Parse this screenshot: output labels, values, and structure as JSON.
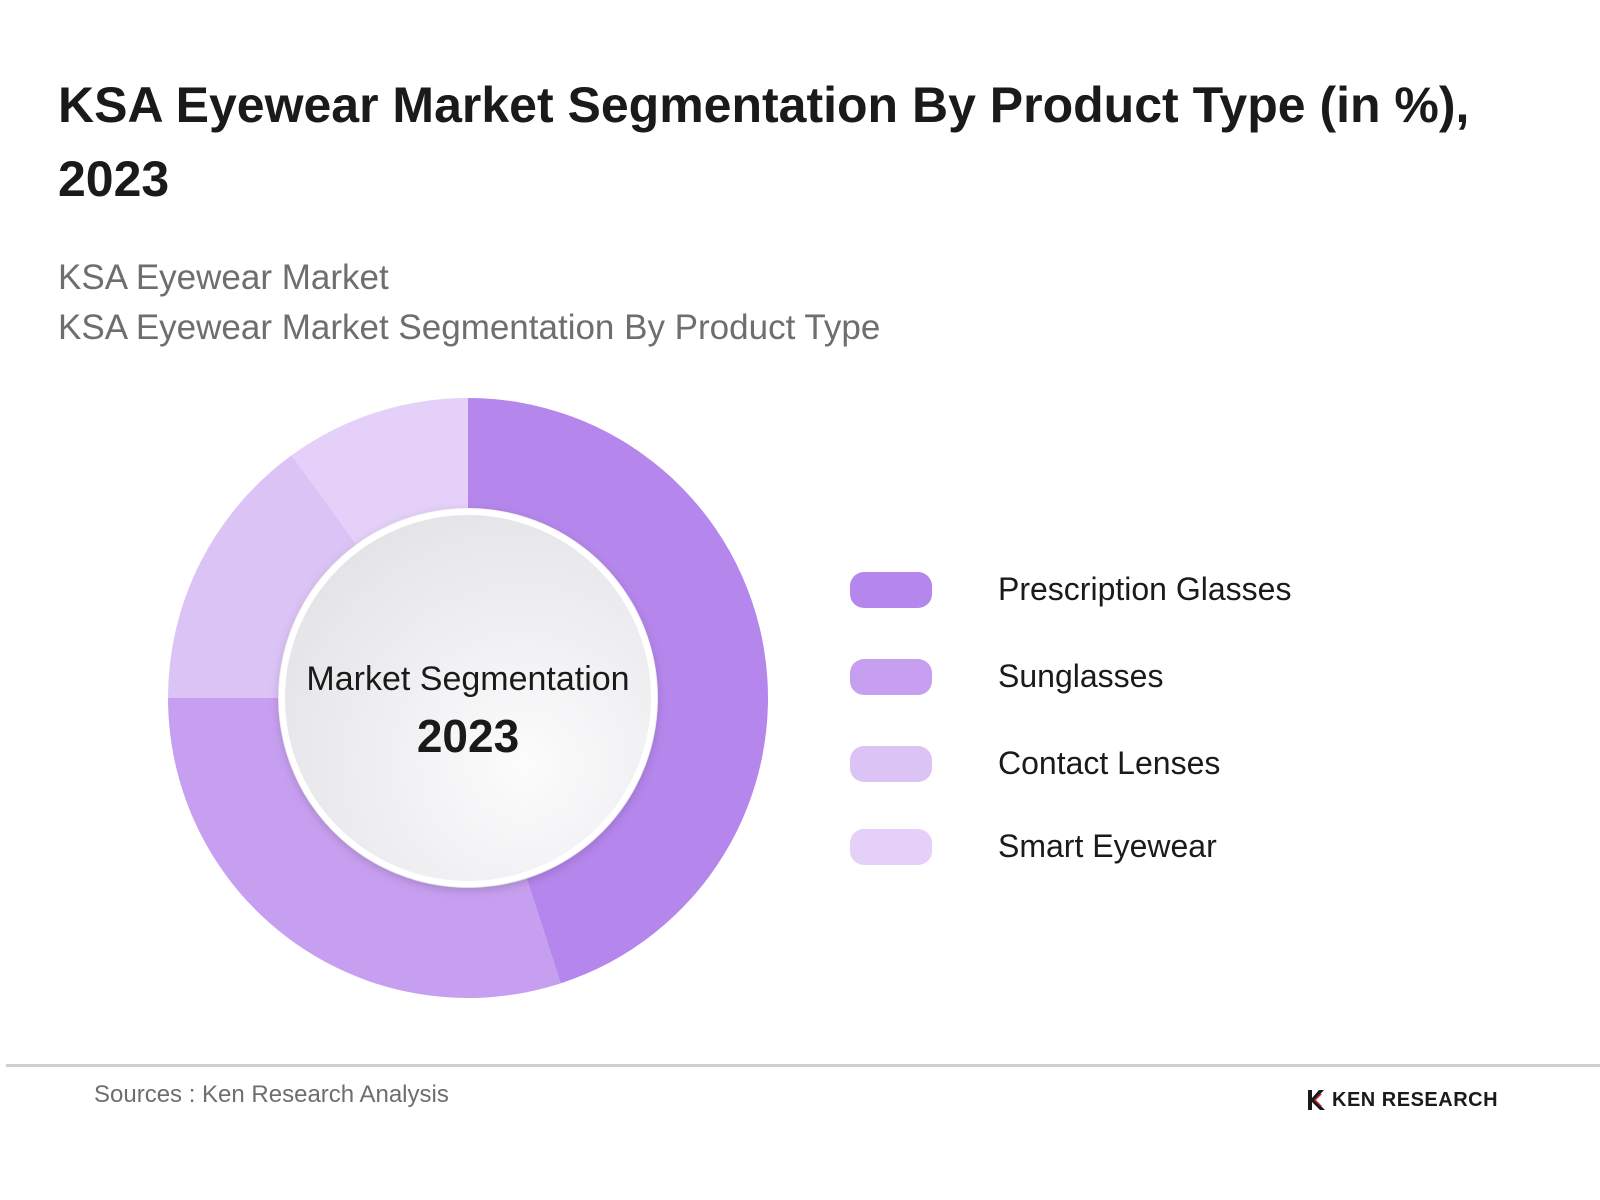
{
  "header": {
    "title": "KSA Eyewear Market Segmentation By Product Type (in %), 2023",
    "subtitle_line1": "KSA Eyewear Market",
    "subtitle_line2": "KSA Eyewear Market Segmentation By Product Type"
  },
  "chart_data": {
    "type": "pie",
    "style": "donut",
    "title": "KSA Eyewear Market Segmentation By Product Type (in %), 2023",
    "center_label": "Market Segmentation",
    "center_value": "2023",
    "legend_position": "right",
    "categories": [
      "Prescription Glasses",
      "Sunglasses",
      "Contact Lenses",
      "Smart Eyewear"
    ],
    "values": [
      45,
      30,
      15,
      10
    ],
    "colors": [
      "#b586ec",
      "#c79ff0",
      "#dcc3f6",
      "#e4d0f8"
    ]
  },
  "footer": {
    "source": "Sources : Ken Research Analysis",
    "brand": "KEN RESEARCH",
    "brand_icon": "ken-research-logo-icon"
  }
}
